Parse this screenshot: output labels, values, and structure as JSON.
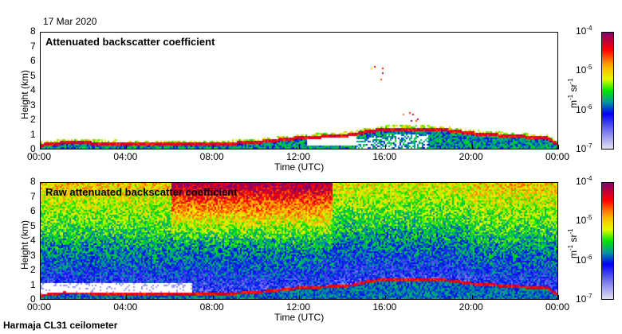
{
  "date_label": "17 Mar 2020",
  "footer": "Harmaja CL31 ceilometer",
  "chart_data": [
    {
      "type": "heatmap",
      "title": "Attenuated backscatter coefficient",
      "xlabel": "Time (UTC)",
      "ylabel": "Height (km)",
      "xlim": [
        0,
        24
      ],
      "ylim": [
        0,
        8
      ],
      "x_ticks": [
        "00:00",
        "04:00",
        "08:00",
        "12:00",
        "16:00",
        "20:00",
        "00:00"
      ],
      "y_ticks": [
        "0",
        "1",
        "2",
        "3",
        "4",
        "5",
        "6",
        "7",
        "8"
      ],
      "colorbar": {
        "scale": "log",
        "range": [
          1e-07,
          0.0001
        ],
        "ticks": [
          {
            "base": "10",
            "exp": "-7"
          },
          {
            "base": "10",
            "exp": "-6"
          },
          {
            "base": "10",
            "exp": "-5"
          },
          {
            "base": "10",
            "exp": "-4"
          }
        ],
        "unit_html": "m<sup>-1</sup> sr<sup>-1</sup>"
      },
      "cloud_base_km": {
        "t": [
          0,
          1,
          4,
          8,
          10,
          12,
          13.5,
          14.5,
          15,
          16,
          18,
          19,
          20,
          22,
          23.5,
          24
        ],
        "h": [
          0.3,
          0.45,
          0.4,
          0.35,
          0.5,
          0.8,
          0.9,
          1.0,
          1.2,
          1.4,
          1.4,
          1.3,
          1.1,
          0.9,
          0.8,
          0.3
        ]
      },
      "elevated_layers": [
        {
          "t": [
            16.8,
            17.6
          ],
          "h": [
            1.9,
            2.6
          ]
        },
        {
          "t": [
            18.8,
            19.3
          ],
          "h": [
            2.3,
            2.6
          ]
        },
        {
          "t": [
            15.3,
            16.0
          ],
          "h": [
            4.5,
            6.0
          ]
        }
      ]
    },
    {
      "type": "heatmap",
      "title": "Raw attenuated backscatter coefficient",
      "xlabel": "Time (UTC)",
      "ylabel": "Height (km)",
      "xlim": [
        0,
        24
      ],
      "ylim": [
        0,
        8
      ],
      "x_ticks": [
        "00:00",
        "04:00",
        "08:00",
        "12:00",
        "16:00",
        "20:00",
        "00:00"
      ],
      "y_ticks": [
        "0",
        "1",
        "2",
        "3",
        "4",
        "5",
        "6",
        "7",
        "8"
      ],
      "colorbar": {
        "scale": "log",
        "range": [
          1e-07,
          0.0001
        ],
        "ticks": [
          {
            "base": "10",
            "exp": "-7"
          },
          {
            "base": "10",
            "exp": "-6"
          },
          {
            "base": "10",
            "exp": "-5"
          },
          {
            "base": "10",
            "exp": "-4"
          }
        ],
        "unit_html": "m<sup>-1</sup> sr<sup>-1</sup>"
      }
    }
  ]
}
